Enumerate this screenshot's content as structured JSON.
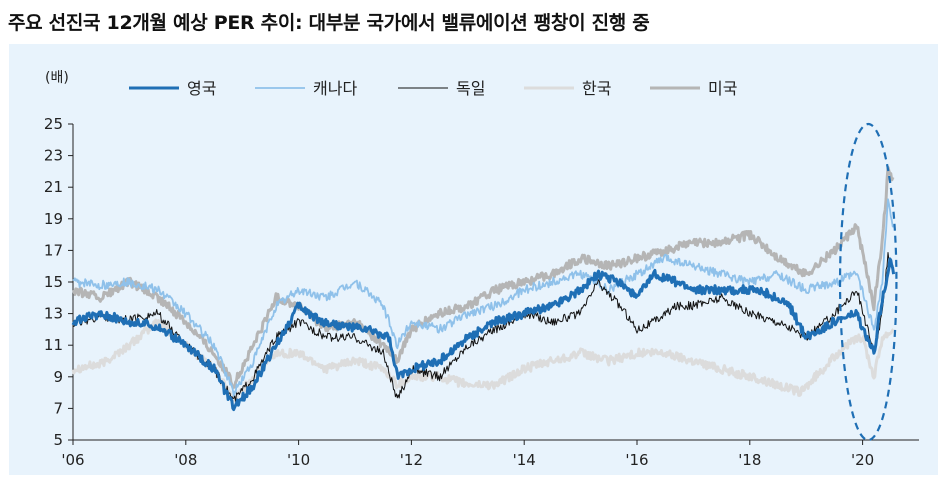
{
  "title": "주요 선진국 12개월 예상 PER 추이: 대부분 국가에서 밸류에이션 팽창이 진행 중",
  "chart_data": {
    "type": "line",
    "ylabel": "(배)",
    "ylim": [
      5,
      25
    ],
    "yticks": [
      5,
      7,
      9,
      11,
      13,
      15,
      17,
      19,
      21,
      23,
      25
    ],
    "xlim": [
      2006.0,
      2021.0
    ],
    "xticks": [
      {
        "value": 2006,
        "label": "'06"
      },
      {
        "value": 2008,
        "label": "'08"
      },
      {
        "value": 2010,
        "label": "'10"
      },
      {
        "value": 2012,
        "label": "'12"
      },
      {
        "value": 2014,
        "label": "'14"
      },
      {
        "value": 2016,
        "label": "'16"
      },
      {
        "value": 2018,
        "label": "'18"
      },
      {
        "value": 2020,
        "label": "'20"
      }
    ],
    "grid": false,
    "legend_position": "top",
    "annotation": {
      "type": "dashed-ellipse",
      "x_center": 2020.1,
      "y_center": 15.0,
      "x_radius": 0.5,
      "y_radius": 10.0,
      "color": "#1f6fb5"
    },
    "series": [
      {
        "name": "영국",
        "color": "#1f6fb5",
        "width": 3,
        "points": [
          [
            2006.0,
            12.5
          ],
          [
            2006.5,
            13.0
          ],
          [
            2007.0,
            12.5
          ],
          [
            2007.5,
            12.2
          ],
          [
            2008.0,
            11.0
          ],
          [
            2008.5,
            9.5
          ],
          [
            2008.85,
            7.0
          ],
          [
            2009.2,
            8.5
          ],
          [
            2009.6,
            11.0
          ],
          [
            2010.0,
            13.5
          ],
          [
            2010.4,
            12.5
          ],
          [
            2010.8,
            12.2
          ],
          [
            2011.2,
            12.0
          ],
          [
            2011.6,
            11.5
          ],
          [
            2011.75,
            9.0
          ],
          [
            2012.0,
            9.5
          ],
          [
            2012.5,
            10.0
          ],
          [
            2013.0,
            11.5
          ],
          [
            2013.5,
            12.5
          ],
          [
            2014.0,
            13.0
          ],
          [
            2014.5,
            13.5
          ],
          [
            2015.0,
            14.5
          ],
          [
            2015.3,
            15.5
          ],
          [
            2015.7,
            15.0
          ],
          [
            2016.0,
            14.0
          ],
          [
            2016.3,
            15.5
          ],
          [
            2016.7,
            15.0
          ],
          [
            2017.0,
            14.5
          ],
          [
            2017.5,
            14.5
          ],
          [
            2018.0,
            14.5
          ],
          [
            2018.3,
            14.3
          ],
          [
            2018.7,
            13.5
          ],
          [
            2019.0,
            11.5
          ],
          [
            2019.5,
            12.5
          ],
          [
            2019.9,
            13.0
          ],
          [
            2020.0,
            12.0
          ],
          [
            2020.2,
            10.5
          ],
          [
            2020.35,
            14.0
          ],
          [
            2020.5,
            16.5
          ],
          [
            2020.55,
            15.5
          ]
        ]
      },
      {
        "name": "캐나다",
        "color": "#8fc1ea",
        "width": 1.8,
        "points": [
          [
            2006.0,
            15.0
          ],
          [
            2006.5,
            14.8
          ],
          [
            2007.0,
            15.0
          ],
          [
            2007.5,
            14.5
          ],
          [
            2008.0,
            13.0
          ],
          [
            2008.5,
            11.0
          ],
          [
            2008.85,
            8.0
          ],
          [
            2009.2,
            10.0
          ],
          [
            2009.6,
            13.5
          ],
          [
            2010.0,
            14.5
          ],
          [
            2010.5,
            14.0
          ],
          [
            2011.0,
            15.0
          ],
          [
            2011.5,
            13.5
          ],
          [
            2011.75,
            11.0
          ],
          [
            2012.0,
            12.5
          ],
          [
            2012.5,
            12.0
          ],
          [
            2013.0,
            13.0
          ],
          [
            2013.5,
            13.5
          ],
          [
            2014.0,
            14.5
          ],
          [
            2014.5,
            15.0
          ],
          [
            2015.0,
            15.5
          ],
          [
            2015.5,
            14.5
          ],
          [
            2016.0,
            15.5
          ],
          [
            2016.5,
            16.5
          ],
          [
            2017.0,
            16.0
          ],
          [
            2017.5,
            15.5
          ],
          [
            2018.0,
            15.0
          ],
          [
            2018.5,
            15.5
          ],
          [
            2019.0,
            14.5
          ],
          [
            2019.5,
            15.0
          ],
          [
            2019.9,
            15.5
          ],
          [
            2020.2,
            12.0
          ],
          [
            2020.35,
            15.0
          ],
          [
            2020.45,
            20.0
          ],
          [
            2020.55,
            18.5
          ]
        ]
      },
      {
        "name": "독일",
        "color": "#111111",
        "width": 1,
        "points": [
          [
            2006.0,
            12.3
          ],
          [
            2006.5,
            12.8
          ],
          [
            2007.0,
            12.6
          ],
          [
            2007.5,
            13.0
          ],
          [
            2008.0,
            11.0
          ],
          [
            2008.5,
            9.5
          ],
          [
            2008.85,
            7.5
          ],
          [
            2009.2,
            9.0
          ],
          [
            2009.6,
            11.5
          ],
          [
            2010.0,
            12.5
          ],
          [
            2010.5,
            11.5
          ],
          [
            2011.0,
            11.5
          ],
          [
            2011.5,
            10.5
          ],
          [
            2011.75,
            7.5
          ],
          [
            2012.0,
            9.5
          ],
          [
            2012.5,
            9.0
          ],
          [
            2013.0,
            11.0
          ],
          [
            2013.5,
            12.0
          ],
          [
            2014.0,
            13.0
          ],
          [
            2014.5,
            12.5
          ],
          [
            2015.0,
            13.0
          ],
          [
            2015.3,
            15.0
          ],
          [
            2015.7,
            13.5
          ],
          [
            2016.0,
            12.0
          ],
          [
            2016.3,
            12.5
          ],
          [
            2016.7,
            13.5
          ],
          [
            2017.0,
            13.5
          ],
          [
            2017.5,
            14.0
          ],
          [
            2018.0,
            13.0
          ],
          [
            2018.5,
            12.5
          ],
          [
            2019.0,
            11.5
          ],
          [
            2019.5,
            13.0
          ],
          [
            2019.9,
            14.5
          ],
          [
            2020.2,
            10.5
          ],
          [
            2020.35,
            13.0
          ],
          [
            2020.45,
            16.8
          ],
          [
            2020.55,
            15.8
          ]
        ]
      },
      {
        "name": "한국",
        "color": "#dcdcdc",
        "width": 3,
        "points": [
          [
            2006.0,
            9.5
          ],
          [
            2006.5,
            9.8
          ],
          [
            2007.0,
            11.0
          ],
          [
            2007.5,
            12.5
          ],
          [
            2008.0,
            11.0
          ],
          [
            2008.5,
            9.5
          ],
          [
            2008.85,
            7.5
          ],
          [
            2009.2,
            9.0
          ],
          [
            2009.6,
            10.5
          ],
          [
            2010.0,
            10.5
          ],
          [
            2010.5,
            9.5
          ],
          [
            2011.0,
            10.0
          ],
          [
            2011.5,
            9.5
          ],
          [
            2011.75,
            8.5
          ],
          [
            2012.0,
            9.0
          ],
          [
            2012.5,
            9.0
          ],
          [
            2013.0,
            8.5
          ],
          [
            2013.5,
            8.5
          ],
          [
            2014.0,
            9.5
          ],
          [
            2014.5,
            10.0
          ],
          [
            2015.0,
            10.5
          ],
          [
            2015.5,
            10.0
          ],
          [
            2016.0,
            10.5
          ],
          [
            2016.5,
            10.5
          ],
          [
            2017.0,
            10.0
          ],
          [
            2017.5,
            9.5
          ],
          [
            2018.0,
            9.0
          ],
          [
            2018.5,
            8.5
          ],
          [
            2018.9,
            8.0
          ],
          [
            2019.3,
            9.5
          ],
          [
            2019.7,
            11.0
          ],
          [
            2020.0,
            11.5
          ],
          [
            2020.2,
            9.0
          ],
          [
            2020.35,
            11.5
          ],
          [
            2020.55,
            12.0
          ]
        ]
      },
      {
        "name": "미국",
        "color": "#b5b5b5",
        "width": 3,
        "points": [
          [
            2006.0,
            14.5
          ],
          [
            2006.5,
            14.0
          ],
          [
            2007.0,
            15.0
          ],
          [
            2007.5,
            14.0
          ],
          [
            2008.0,
            12.5
          ],
          [
            2008.5,
            10.5
          ],
          [
            2008.85,
            8.5
          ],
          [
            2009.2,
            11.0
          ],
          [
            2009.6,
            14.0
          ],
          [
            2010.0,
            13.5
          ],
          [
            2010.5,
            12.0
          ],
          [
            2011.0,
            12.5
          ],
          [
            2011.5,
            11.0
          ],
          [
            2011.75,
            10.0
          ],
          [
            2012.0,
            12.0
          ],
          [
            2012.5,
            13.0
          ],
          [
            2013.0,
            13.5
          ],
          [
            2013.5,
            14.5
          ],
          [
            2014.0,
            15.0
          ],
          [
            2014.5,
            15.5
          ],
          [
            2015.0,
            16.5
          ],
          [
            2015.5,
            16.0
          ],
          [
            2016.0,
            16.5
          ],
          [
            2016.5,
            17.0
          ],
          [
            2017.0,
            17.5
          ],
          [
            2017.5,
            17.5
          ],
          [
            2018.0,
            18.0
          ],
          [
            2018.5,
            16.5
          ],
          [
            2019.0,
            15.5
          ],
          [
            2019.5,
            17.0
          ],
          [
            2019.9,
            18.5
          ],
          [
            2020.2,
            13.5
          ],
          [
            2020.35,
            17.5
          ],
          [
            2020.45,
            22.0
          ],
          [
            2020.55,
            21.5
          ]
        ]
      }
    ]
  }
}
